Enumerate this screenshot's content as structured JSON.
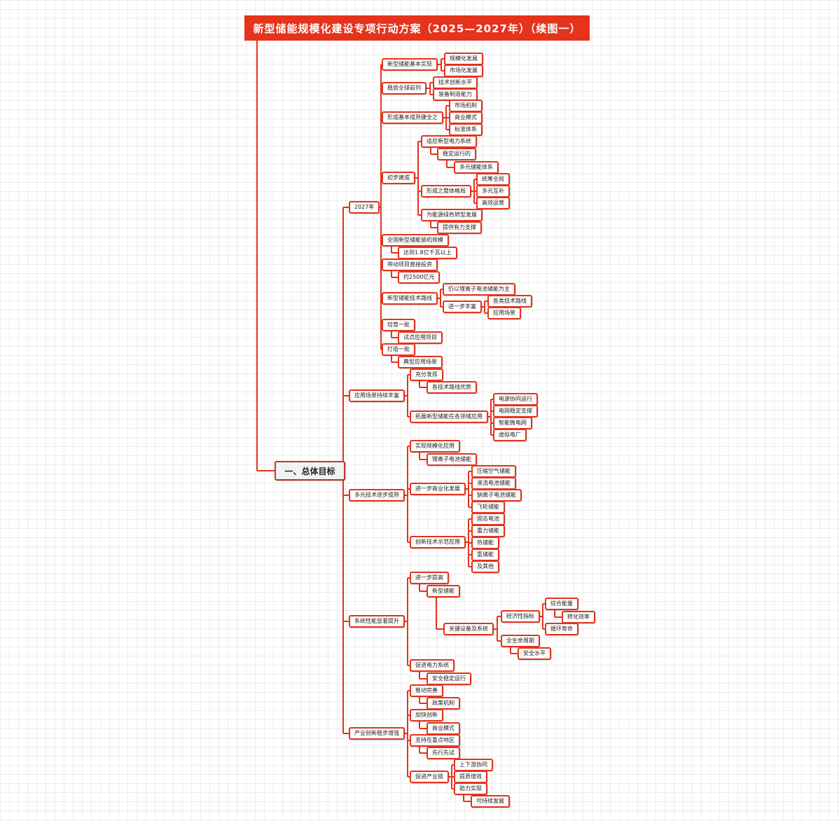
{
  "title": "新型储能规模化建设专项行动方案（2025—2027年）（续图一）",
  "colors": {
    "accent": "#e5331c",
    "line": "#e5331c"
  },
  "root": "一、总体目标",
  "nodes": [
    {
      "id": "n2027",
      "text": "2027年",
      "parent": "root"
    },
    {
      "id": "a1",
      "text": "新型储能基本实现",
      "parent": "n2027"
    },
    {
      "id": "a1a",
      "text": "规模化发展",
      "parent": "a1"
    },
    {
      "id": "a1b",
      "text": "市场化发展",
      "parent": "a1"
    },
    {
      "id": "a2",
      "text": "稳居全球前列",
      "parent": "n2027"
    },
    {
      "id": "a2a",
      "text": "技术创新水平",
      "parent": "a2"
    },
    {
      "id": "a2b",
      "text": "装备制造能力",
      "parent": "a2"
    },
    {
      "id": "a3",
      "text": "形成基本成熟健全之",
      "parent": "n2027"
    },
    {
      "id": "a3a",
      "text": "市场机制",
      "parent": "a3"
    },
    {
      "id": "a3b",
      "text": "商业模式",
      "parent": "a3"
    },
    {
      "id": "a3c",
      "text": "标准体系",
      "parent": "a3"
    },
    {
      "id": "a4",
      "text": "初步建成",
      "parent": "n2027"
    },
    {
      "id": "a4a",
      "text": "适应新型电力系统",
      "parent": "a4"
    },
    {
      "id": "a4a1",
      "text": "稳定运行的",
      "parent": "a4a"
    },
    {
      "id": "a4a2",
      "text": "多元储能体系",
      "parent": "a4a1"
    },
    {
      "id": "a4b",
      "text": "形成之整体格局",
      "parent": "a4"
    },
    {
      "id": "a4b1",
      "text": "统筹全局",
      "parent": "a4b"
    },
    {
      "id": "a4b2",
      "text": "多元互补",
      "parent": "a4b"
    },
    {
      "id": "a4b3",
      "text": "高效运营",
      "parent": "a4b"
    },
    {
      "id": "a4c",
      "text": "为能源绿色转型发展",
      "parent": "a4"
    },
    {
      "id": "a4c1",
      "text": "提供有力支撑",
      "parent": "a4c"
    },
    {
      "id": "a5",
      "text": "全国新型储能装机规模",
      "parent": "n2027"
    },
    {
      "id": "a5a",
      "text": "达到1.8亿千瓦以上",
      "parent": "a5"
    },
    {
      "id": "a6",
      "text": "带动项目直接投资",
      "parent": "n2027"
    },
    {
      "id": "a6a",
      "text": "约2500亿元",
      "parent": "a6"
    },
    {
      "id": "a7",
      "text": "新型储能技术路线",
      "parent": "n2027"
    },
    {
      "id": "a7a",
      "text": "仍以锂离子电池储能为主",
      "parent": "a7"
    },
    {
      "id": "a7b",
      "text": "进一步丰富",
      "parent": "a7"
    },
    {
      "id": "a7b1",
      "text": "各类技术路线",
      "parent": "a7b"
    },
    {
      "id": "a7b2",
      "text": "应用场景",
      "parent": "a7b"
    },
    {
      "id": "a8",
      "text": "培育一批",
      "parent": "n2027"
    },
    {
      "id": "a8a",
      "text": "试点应用项目",
      "parent": "a8"
    },
    {
      "id": "a9",
      "text": "打造一批",
      "parent": "n2027"
    },
    {
      "id": "a9a",
      "text": "典型应用场景",
      "parent": "a9"
    },
    {
      "id": "b",
      "text": "应用场景持续丰富",
      "parent": "root"
    },
    {
      "id": "b1",
      "text": "充分发挥",
      "parent": "b"
    },
    {
      "id": "b1a",
      "text": "各技术路线优势",
      "parent": "b1"
    },
    {
      "id": "b2",
      "text": "拓展新型储能在各领域应用",
      "parent": "b"
    },
    {
      "id": "b2a",
      "text": "电源协同运行",
      "parent": "b2"
    },
    {
      "id": "b2b",
      "text": "电网稳定支撑",
      "parent": "b2"
    },
    {
      "id": "b2c",
      "text": "智能微电网",
      "parent": "b2"
    },
    {
      "id": "b2d",
      "text": "虚拟电厂",
      "parent": "b2"
    },
    {
      "id": "c",
      "text": "多元技术逐步成熟",
      "parent": "root"
    },
    {
      "id": "c1",
      "text": "实现规模化应用",
      "parent": "c"
    },
    {
      "id": "c1a",
      "text": "锂离子电池储能",
      "parent": "c1"
    },
    {
      "id": "c2",
      "text": "进一步商业化发展",
      "parent": "c"
    },
    {
      "id": "c2a",
      "text": "压缩空气储能",
      "parent": "c2"
    },
    {
      "id": "c2b",
      "text": "液流电池储能",
      "parent": "c2"
    },
    {
      "id": "c2c",
      "text": "钠离子电池储能",
      "parent": "c2"
    },
    {
      "id": "c2d",
      "text": "飞轮储能",
      "parent": "c2"
    },
    {
      "id": "c3",
      "text": "创新技术示范应用",
      "parent": "c"
    },
    {
      "id": "c3a",
      "text": "固态电池",
      "parent": "c3"
    },
    {
      "id": "c3b",
      "text": "重力储能",
      "parent": "c3"
    },
    {
      "id": "c3c",
      "text": "热储能",
      "parent": "c3"
    },
    {
      "id": "c3d",
      "text": "氢储能",
      "parent": "c3"
    },
    {
      "id": "c3e",
      "text": "及其他",
      "parent": "c3"
    },
    {
      "id": "d",
      "text": "系统性能显著提升",
      "parent": "root"
    },
    {
      "id": "d1",
      "text": "进一步提高",
      "parent": "d"
    },
    {
      "id": "d1a",
      "text": "新型储能",
      "parent": "d1"
    },
    {
      "id": "d1b",
      "text": "关键设备及系统",
      "parent": "d1a"
    },
    {
      "id": "d1b1",
      "text": "经济性指标",
      "parent": "d1b"
    },
    {
      "id": "d1b1a",
      "text": "综合能量",
      "parent": "d1b1"
    },
    {
      "id": "d1b1a1",
      "text": "转化效率",
      "parent": "d1b1a"
    },
    {
      "id": "d1b1b",
      "text": "循环寿命",
      "parent": "d1b1"
    },
    {
      "id": "d1b2",
      "text": "全生命周期",
      "parent": "d1b"
    },
    {
      "id": "d1b2a",
      "text": "安全水平",
      "parent": "d1b2"
    },
    {
      "id": "d2",
      "text": "促进电力系统",
      "parent": "d"
    },
    {
      "id": "d2a",
      "text": "安全稳定运行",
      "parent": "d2"
    },
    {
      "id": "e",
      "text": "产业创新稳步增强",
      "parent": "root"
    },
    {
      "id": "e1",
      "text": "推动完善",
      "parent": "e"
    },
    {
      "id": "e1a",
      "text": "政策机制",
      "parent": "e1"
    },
    {
      "id": "e2",
      "text": "加快创新",
      "parent": "e"
    },
    {
      "id": "e2a",
      "text": "商业模式",
      "parent": "e2"
    },
    {
      "id": "e3",
      "text": "支持在重点地区",
      "parent": "e"
    },
    {
      "id": "e3a",
      "text": "先行先试",
      "parent": "e3"
    },
    {
      "id": "e4",
      "text": "促进产业链",
      "parent": "e"
    },
    {
      "id": "e4a",
      "text": "上下游协同",
      "parent": "e4"
    },
    {
      "id": "e4b",
      "text": "提质增效",
      "parent": "e4"
    },
    {
      "id": "e4c",
      "text": "助力实现",
      "parent": "e4"
    },
    {
      "id": "e4c1",
      "text": "可持续发展",
      "parent": "e4c"
    }
  ]
}
